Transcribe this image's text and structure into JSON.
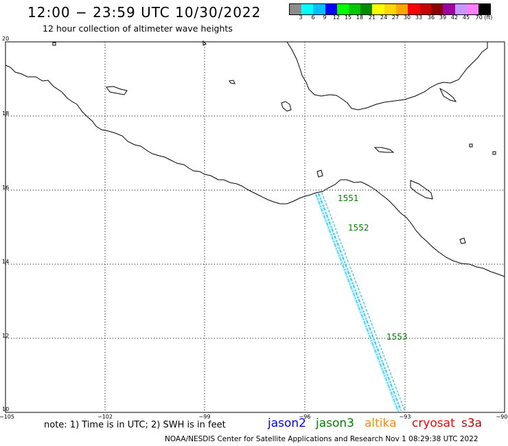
{
  "header": {
    "title": "12:00 − 23:59 UTC 10/30/2022",
    "subtitle": "12 hour collection of altimeter wave heights"
  },
  "color_scale": {
    "labels": [
      "3",
      "6",
      "9",
      "12",
      "15",
      "18",
      "21",
      "24",
      "27",
      "30",
      "33",
      "36",
      "39",
      "42",
      "45",
      "70 (ft)"
    ],
    "colors": [
      "#8c8c8c",
      "#00ffff",
      "#00bfff",
      "#0000ff",
      "#00ff00",
      "#00c800",
      "#008c00",
      "#ffff00",
      "#ffd700",
      "#ffa500",
      "#ff0000",
      "#c80000",
      "#8b0000",
      "#a000a0",
      "#c896ff",
      "#ff80ff",
      "#000000"
    ]
  },
  "axes": {
    "lat_labels": [
      "20",
      "18",
      "16",
      "14",
      "12",
      "10"
    ],
    "lon_labels": [
      "−105",
      "−102",
      "−99",
      "−96",
      "−93",
      "−90"
    ]
  },
  "passes": [
    {
      "label": "1551",
      "color": "#008000"
    },
    {
      "label": "1552",
      "color": "#008000"
    },
    {
      "label": "1553",
      "color": "#008000"
    }
  ],
  "footer": {
    "note": "note: 1) Time is in UTC; 2) SWH is in feet",
    "satellites": [
      {
        "name": "jason2",
        "color": "#0000ff"
      },
      {
        "name": "jason3",
        "color": "#008000"
      },
      {
        "name": "altika",
        "color": "#ff8c00"
      },
      {
        "name": "cryosat",
        "color": "#ff0000"
      },
      {
        "name": "s3a",
        "color": "#c00000"
      }
    ],
    "credit": "NOAA/NESDIS Center for Satellite Applications and Research    Nov  1 08:29:38 UTC 2022"
  }
}
